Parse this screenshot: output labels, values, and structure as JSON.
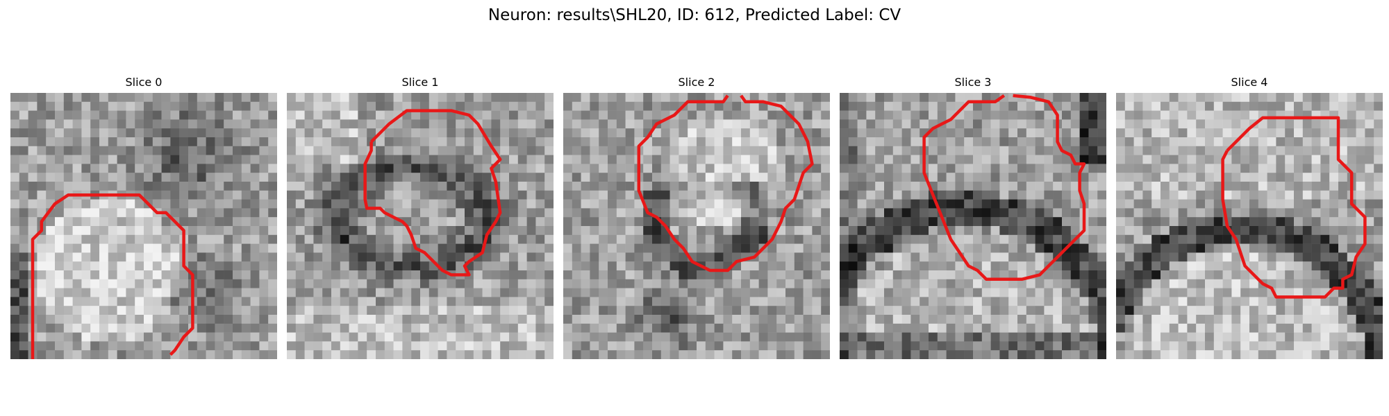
{
  "figure": {
    "title": "Neuron: results\\SHL20, ID: 612, Predicted Label: CV"
  },
  "panels": [
    {
      "title": "Slice 0",
      "image_name": "slice-0-microscopy-image"
    },
    {
      "title": "Slice 1",
      "image_name": "slice-1-microscopy-image"
    },
    {
      "title": "Slice 2",
      "image_name": "slice-2-microscopy-image"
    },
    {
      "title": "Slice 3",
      "image_name": "slice-3-microscopy-image"
    },
    {
      "title": "Slice 4",
      "image_name": "slice-4-microscopy-image"
    }
  ],
  "contour_color": "#e81818",
  "image_style": "grayscale pixelated microscopy slice"
}
